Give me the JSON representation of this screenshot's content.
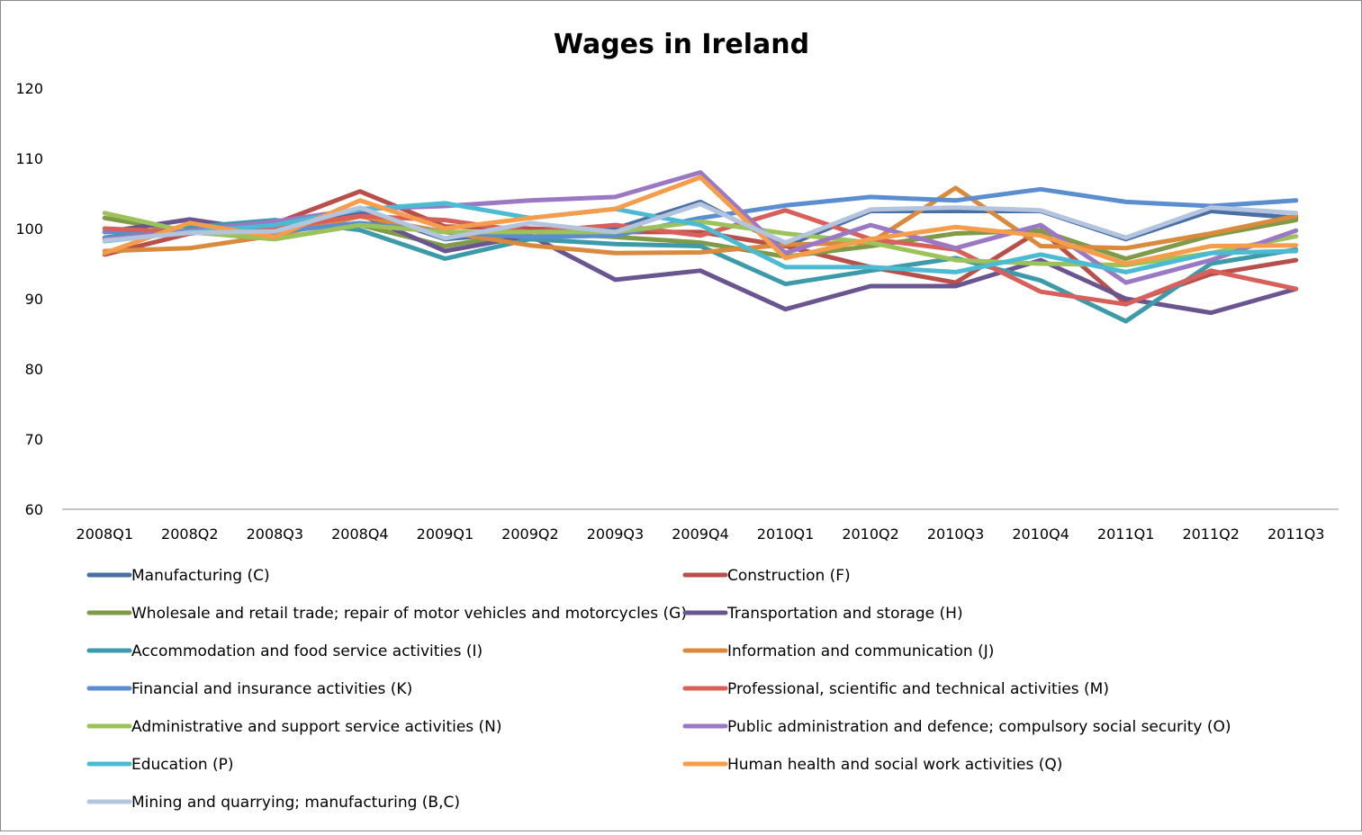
{
  "chart_data": {
    "type": "line",
    "title": "Wages in Ireland",
    "xlabel": "",
    "ylabel": "",
    "ylim": [
      60,
      120
    ],
    "yticks": [
      60,
      70,
      80,
      90,
      100,
      110,
      120
    ],
    "categories": [
      "2008Q1",
      "2008Q2",
      "2008Q3",
      "2008Q4",
      "2009Q1",
      "2009Q2",
      "2009Q3",
      "2009Q4",
      "2010Q1",
      "2010Q2",
      "2010Q3",
      "2010Q4",
      "2011Q1",
      "2011Q2",
      "2011Q3"
    ],
    "legend_position": "bottom",
    "series": [
      {
        "name": "Manufacturing (C)",
        "color": "#4a6fa5",
        "values": [
          98.5,
          99.5,
          100.0,
          102.5,
          98.5,
          99.5,
          100.0,
          103.8,
          97.5,
          102.5,
          102.5,
          102.5,
          98.5,
          102.5,
          101.5
        ]
      },
      {
        "name": "Construction (F)",
        "color": "#b84f4b",
        "values": [
          96.3,
          99.3,
          100.7,
          105.3,
          100.3,
          100.0,
          99.5,
          99.5,
          97.5,
          94.5,
          92.3,
          99.8,
          89.3,
          93.5,
          95.5
        ]
      },
      {
        "name": "Wholesale and retail trade; repair of motor vehicles and motorcycles (G)",
        "color": "#7f9a48",
        "values": [
          101.5,
          99.5,
          98.5,
          100.5,
          97.5,
          99.5,
          98.8,
          98.0,
          96.0,
          97.5,
          99.3,
          99.7,
          95.7,
          99.0,
          101.2
        ]
      },
      {
        "name": "Transportation and storage (H)",
        "color": "#6a5590",
        "values": [
          99.5,
          101.3,
          99.5,
          102.0,
          96.8,
          99.0,
          92.7,
          94.0,
          88.5,
          91.8,
          91.8,
          95.5,
          90.0,
          88.0,
          91.4
        ]
      },
      {
        "name": "Accommodation and food service activities (I)",
        "color": "#3d9aa8",
        "values": [
          98.7,
          100.2,
          101.2,
          99.8,
          95.7,
          98.5,
          97.8,
          97.5,
          92.1,
          94.0,
          95.8,
          92.6,
          86.8,
          95.0,
          97.0
        ]
      },
      {
        "name": "Information and communication (J)",
        "color": "#d98a3c",
        "values": [
          96.8,
          97.2,
          99.0,
          101.7,
          99.5,
          97.6,
          96.5,
          96.6,
          97.7,
          98.0,
          105.8,
          97.5,
          97.2,
          99.3,
          101.8
        ]
      },
      {
        "name": "Financial and insurance activities (K)",
        "color": "#5b8ed0",
        "values": [
          99.5,
          99.6,
          99.5,
          100.8,
          99.5,
          98.8,
          99.0,
          101.5,
          103.3,
          104.5,
          104.0,
          105.6,
          103.8,
          103.2,
          104.0
        ]
      },
      {
        "name": "Professional, scientific and technical activities (M)",
        "color": "#d8605b",
        "values": [
          100.0,
          99.5,
          100.0,
          101.8,
          101.2,
          99.5,
          100.5,
          99.0,
          102.6,
          98.5,
          97.0,
          91.0,
          89.2,
          94.0,
          91.4
        ]
      },
      {
        "name": "Administrative and support service activities (N)",
        "color": "#9cc25c",
        "values": [
          102.2,
          99.5,
          98.5,
          100.5,
          99.5,
          99.5,
          99.5,
          101.0,
          99.3,
          98.0,
          95.5,
          95.0,
          94.8,
          96.5,
          98.9
        ]
      },
      {
        "name": "Public administration and defence; compulsory social security (O)",
        "color": "#9b78c4",
        "values": [
          98.5,
          99.7,
          101.0,
          102.8,
          103.2,
          104.0,
          104.5,
          108.0,
          96.5,
          100.5,
          97.2,
          100.5,
          92.3,
          95.5,
          99.7
        ]
      },
      {
        "name": "Education (P)",
        "color": "#4bbbd3",
        "values": [
          98.2,
          99.5,
          100.5,
          102.7,
          103.6,
          101.5,
          102.8,
          100.5,
          94.5,
          94.5,
          93.8,
          96.3,
          93.8,
          96.5,
          96.8
        ]
      },
      {
        "name": "Human health and social work activities (Q)",
        "color": "#f59d4a",
        "values": [
          96.5,
          100.8,
          98.8,
          104.0,
          100.0,
          101.5,
          102.8,
          107.3,
          95.8,
          98.5,
          100.2,
          99.0,
          95.0,
          97.5,
          97.6
        ]
      },
      {
        "name": "Mining and quarrying; manufacturing (B,C)",
        "color": "#b3c4df",
        "values": [
          98.3,
          99.4,
          99.6,
          103.0,
          98.6,
          100.8,
          99.5,
          103.5,
          98.0,
          102.7,
          103.0,
          102.6,
          98.7,
          103.0,
          102.2
        ]
      }
    ]
  }
}
